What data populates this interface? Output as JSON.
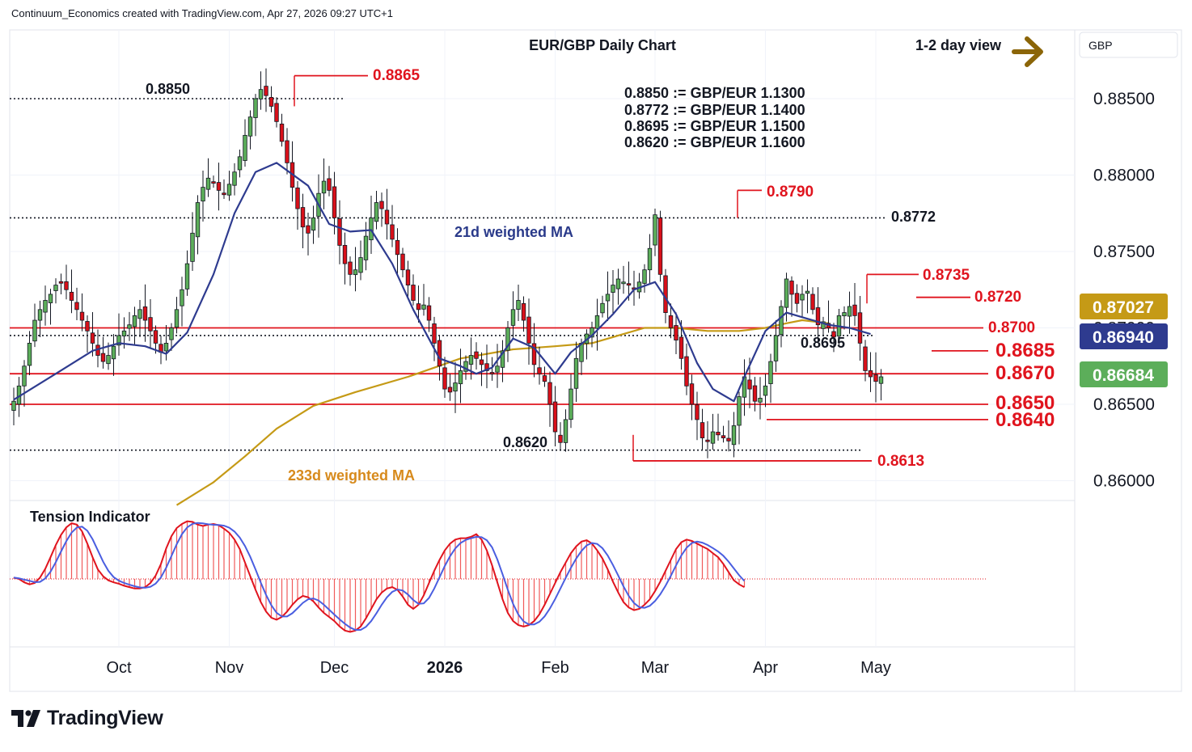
{
  "header": {
    "credit": "Continuum_Economics created with TradingView.com, Apr 27, 2026 09:27 UTC+1"
  },
  "chart_data": {
    "type": "candlestick",
    "title": "EUR/GBP Daily Chart",
    "view_label": "1-2 day view",
    "currency": "GBP",
    "y_axis": {
      "min": 0.8585,
      "max": 0.8885,
      "ticks": [
        "0.88500",
        "0.88000",
        "0.87500",
        "0.87000",
        "0.86500",
        "0.86000"
      ],
      "tick_values": [
        0.885,
        0.88,
        0.875,
        0.87,
        0.865,
        0.86
      ]
    },
    "x_axis": {
      "labels": [
        "Oct",
        "Nov",
        "Dec",
        "2026",
        "Feb",
        "Mar",
        "Apr",
        "May"
      ],
      "label_bar_index": [
        20,
        41,
        61,
        82,
        103,
        122,
        143,
        164
      ]
    },
    "conversions": [
      "0.8850 := GBP/EUR 1.1300",
      "0.8772 := GBP/EUR 1.1400",
      "0.8695 := GBP/EUR 1.1500",
      "0.8620 := GBP/EUR 1.1600"
    ],
    "price_tags": [
      {
        "text": "0.87027",
        "value": 0.87027,
        "color": "#c59a16"
      },
      {
        "text": "0.86940",
        "value": 0.8694,
        "color": "#2e3b8f"
      },
      {
        "text": "0.86684",
        "value": 0.86684,
        "color": "#5cae5a"
      }
    ],
    "levels": {
      "support_resistance": [
        0.87,
        0.8685,
        0.867,
        0.865,
        0.864
      ],
      "labels": {
        "l8865": "0.8865",
        "l8850": "0.8850",
        "l8790": "0.8790",
        "l8772": "0.8772",
        "l8735": "0.8735",
        "l8720": "0.8720",
        "l8700": "0.8700",
        "l8695": "0.8695",
        "l8685": "0.8685",
        "l8670": "0.8670",
        "l8650": "0.8650",
        "l8640": "0.8640",
        "l8620": "0.8620",
        "l8613": "0.8613"
      }
    },
    "ma21_label": "21d weighted MA",
    "ma233_label": "233d weighted MA",
    "tension_label": "Tension Indicator",
    "closes": [
      0.8652,
      0.8662,
      0.8675,
      0.869,
      0.8705,
      0.8712,
      0.8718,
      0.8722,
      0.8728,
      0.873,
      0.8725,
      0.8718,
      0.8712,
      0.8705,
      0.8698,
      0.869,
      0.8682,
      0.8678,
      0.8682,
      0.8688,
      0.8695,
      0.8698,
      0.8702,
      0.8708,
      0.8712,
      0.8705,
      0.8698,
      0.869,
      0.8684,
      0.869,
      0.87,
      0.8712,
      0.8725,
      0.8742,
      0.8762,
      0.8782,
      0.8792,
      0.8798,
      0.8795,
      0.879,
      0.8788,
      0.8794,
      0.8802,
      0.8812,
      0.8826,
      0.8838,
      0.885,
      0.8856,
      0.8852,
      0.8845,
      0.8835,
      0.8822,
      0.8808,
      0.8792,
      0.8778,
      0.8766,
      0.8762,
      0.8772,
      0.8788,
      0.8796,
      0.879,
      0.8772,
      0.8754,
      0.8742,
      0.8735,
      0.8738,
      0.8746,
      0.876,
      0.8772,
      0.8782,
      0.8778,
      0.8768,
      0.8758,
      0.8748,
      0.8738,
      0.8728,
      0.8718,
      0.8712,
      0.8715,
      0.8705,
      0.869,
      0.8675,
      0.866,
      0.8658,
      0.8664,
      0.8672,
      0.8678,
      0.8682,
      0.868,
      0.8676,
      0.8672,
      0.867,
      0.8675,
      0.8685,
      0.87,
      0.8712,
      0.8718,
      0.8705,
      0.869,
      0.8676,
      0.867,
      0.8665,
      0.865,
      0.8632,
      0.8625,
      0.864,
      0.866,
      0.868,
      0.869,
      0.8696,
      0.87,
      0.8708,
      0.8716,
      0.8722,
      0.8728,
      0.8732,
      0.873,
      0.8728,
      0.8726,
      0.873,
      0.8738,
      0.8752,
      0.8774,
      0.8735,
      0.871,
      0.87,
      0.8692,
      0.868,
      0.8662,
      0.865,
      0.864,
      0.8628,
      0.8626,
      0.8632,
      0.863,
      0.8628,
      0.8626,
      0.8636,
      0.8655,
      0.8668,
      0.866,
      0.8652,
      0.8654,
      0.8662,
      0.8678,
      0.8695,
      0.8714,
      0.8732,
      0.8722,
      0.8716,
      0.8722,
      0.8724,
      0.8712,
      0.8702,
      0.8704,
      0.87,
      0.8694,
      0.8708,
      0.871,
      0.8714,
      0.8708,
      0.869,
      0.8672,
      0.8668,
      0.8665,
      0.8668
    ],
    "tension": [
      0.02,
      0.0,
      -0.05,
      -0.08,
      -0.06,
      0.02,
      0.15,
      0.32,
      0.5,
      0.65,
      0.76,
      0.82,
      0.8,
      0.7,
      0.52,
      0.32,
      0.14,
      0.04,
      -0.02,
      -0.05,
      -0.07,
      -0.1,
      -0.12,
      -0.14,
      -0.14,
      -0.12,
      -0.06,
      0.05,
      0.22,
      0.45,
      0.63,
      0.75,
      0.81,
      0.85,
      0.84,
      0.8,
      0.78,
      0.8,
      0.81,
      0.79,
      0.74,
      0.68,
      0.58,
      0.44,
      0.24,
      0.04,
      -0.16,
      -0.34,
      -0.48,
      -0.57,
      -0.6,
      -0.56,
      -0.48,
      -0.38,
      -0.3,
      -0.25,
      -0.27,
      -0.33,
      -0.42,
      -0.5,
      -0.56,
      -0.62,
      -0.7,
      -0.76,
      -0.78,
      -0.76,
      -0.7,
      -0.58,
      -0.44,
      -0.3,
      -0.2,
      -0.14,
      -0.12,
      -0.16,
      -0.26,
      -0.38,
      -0.44,
      -0.38,
      -0.24,
      -0.06,
      0.12,
      0.28,
      0.42,
      0.52,
      0.58,
      0.6,
      0.6,
      0.62,
      0.66,
      0.58,
      0.42,
      0.2,
      -0.05,
      -0.3,
      -0.5,
      -0.62,
      -0.68,
      -0.7,
      -0.68,
      -0.62,
      -0.52,
      -0.38,
      -0.22,
      -0.06,
      0.1,
      0.24,
      0.38,
      0.48,
      0.55,
      0.57,
      0.52,
      0.42,
      0.3,
      0.14,
      -0.04,
      -0.2,
      -0.34,
      -0.42,
      -0.46,
      -0.44,
      -0.38,
      -0.3,
      -0.18,
      -0.04,
      0.12,
      0.28,
      0.44,
      0.54,
      0.58,
      0.56,
      0.52,
      0.48,
      0.44,
      0.38,
      0.32,
      0.22,
      0.1,
      -0.02,
      -0.08,
      -0.12
    ],
    "ma21_points": [
      [
        0,
        0.8653
      ],
      [
        8,
        0.867
      ],
      [
        15,
        0.8685
      ],
      [
        20,
        0.869
      ],
      [
        25,
        0.8688
      ],
      [
        29,
        0.8683
      ],
      [
        33,
        0.8697
      ],
      [
        38,
        0.8735
      ],
      [
        42,
        0.8775
      ],
      [
        46,
        0.8802
      ],
      [
        50,
        0.8808
      ],
      [
        56,
        0.8793
      ],
      [
        60,
        0.8768
      ],
      [
        64,
        0.8763
      ],
      [
        68,
        0.8764
      ],
      [
        72,
        0.8742
      ],
      [
        76,
        0.8712
      ],
      [
        81,
        0.868
      ],
      [
        85,
        0.8675
      ],
      [
        88,
        0.867
      ],
      [
        91,
        0.8674
      ],
      [
        95,
        0.8693
      ],
      [
        99,
        0.8687
      ],
      [
        103,
        0.867
      ],
      [
        106,
        0.8684
      ],
      [
        110,
        0.8695
      ],
      [
        114,
        0.8709
      ],
      [
        118,
        0.8725
      ],
      [
        122,
        0.873
      ],
      [
        126,
        0.8709
      ],
      [
        130,
        0.8677
      ],
      [
        133,
        0.866
      ],
      [
        137,
        0.8652
      ],
      [
        139,
        0.8668
      ],
      [
        143,
        0.8698
      ],
      [
        147,
        0.871
      ],
      [
        151,
        0.8706
      ],
      [
        155,
        0.8702
      ],
      [
        159,
        0.87
      ],
      [
        163,
        0.8696
      ]
    ],
    "ma233_points": [
      [
        31,
        0.8584
      ],
      [
        38,
        0.8599
      ],
      [
        44,
        0.8616
      ],
      [
        50,
        0.8634
      ],
      [
        57,
        0.8649
      ],
      [
        65,
        0.8658
      ],
      [
        75,
        0.8668
      ],
      [
        85,
        0.868
      ],
      [
        95,
        0.8686
      ],
      [
        103,
        0.8688
      ],
      [
        110,
        0.869
      ],
      [
        116,
        0.8696
      ],
      [
        120,
        0.87
      ],
      [
        126,
        0.87
      ],
      [
        132,
        0.8698
      ],
      [
        138,
        0.8698
      ],
      [
        143,
        0.87
      ],
      [
        147,
        0.8703
      ],
      [
        150,
        0.8705
      ],
      [
        155,
        0.8703
      ]
    ]
  }
}
